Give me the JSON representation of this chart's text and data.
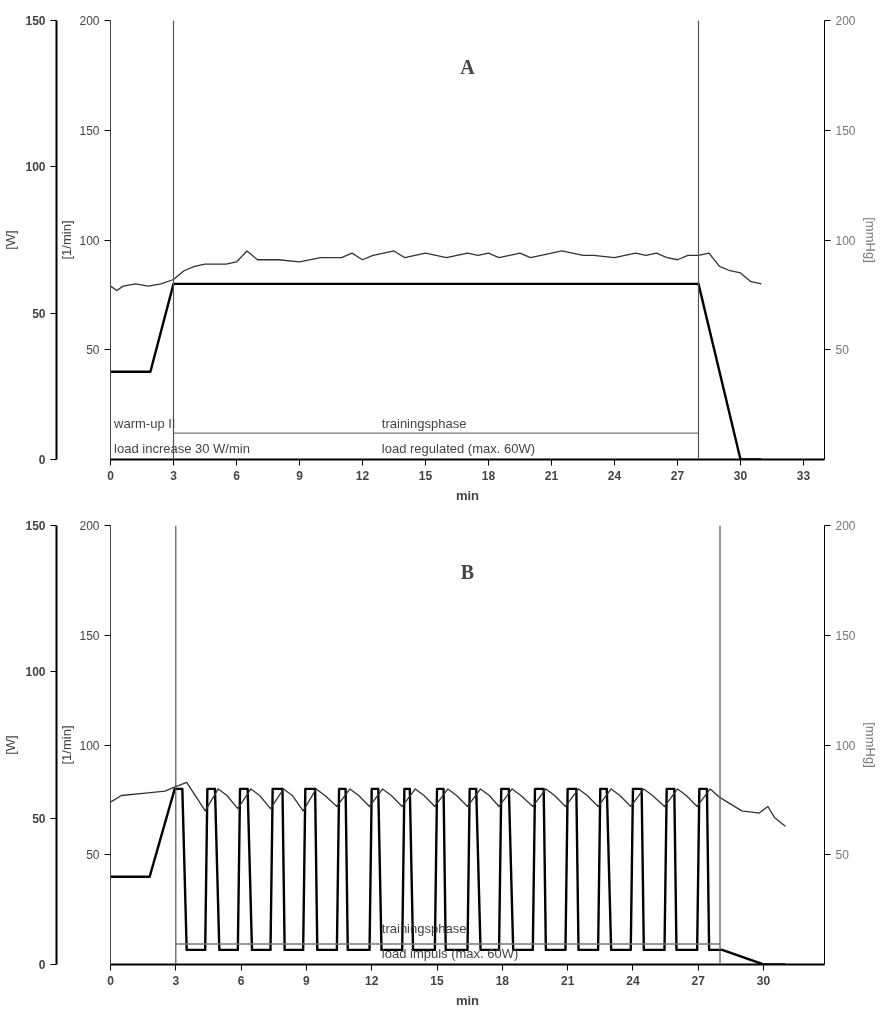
{
  "chart_data": [
    {
      "type": "line",
      "title": "A",
      "xlabel": "min",
      "ylabel": "[W]",
      "y2label": "[mmHg]",
      "y3label": "[1/min]",
      "xlim": [
        0,
        34
      ],
      "xticks": [
        0,
        3,
        6,
        9,
        12,
        15,
        18,
        21,
        24,
        27,
        30,
        33
      ],
      "ylim": [
        0,
        150
      ],
      "yticks": [
        0,
        50,
        100,
        150
      ],
      "y2lim": [
        0,
        200
      ],
      "y2ticks": [
        50,
        100,
        150,
        200
      ],
      "y3lim": [
        0,
        200
      ],
      "y3ticks": [
        50,
        100,
        150,
        200
      ],
      "series": [
        {
          "color": "#000000",
          "x": [
            0,
            1.9,
            3,
            28,
            30,
            31
          ],
          "values": [
            30,
            30,
            60,
            60,
            0,
            0
          ]
        },
        {
          "color": "#333333",
          "axis": "y3",
          "x": [
            0,
            0.3,
            0.6,
            1.2,
            1.8,
            2.4,
            3,
            3.5,
            4,
            4.5,
            5,
            5.5,
            6,
            6.5,
            7,
            8,
            9,
            10,
            11,
            11.5,
            12,
            12.5,
            13.5,
            14,
            15,
            15.5,
            16,
            17,
            17.5,
            18,
            18.5,
            19,
            19.5,
            20,
            20.5,
            21,
            21.5,
            22,
            22.5,
            23,
            24,
            24.5,
            25,
            25.5,
            26,
            26.5,
            27,
            27.5,
            28,
            28.5,
            29,
            29.5,
            30,
            30.5,
            31
          ],
          "values": [
            79,
            77,
            79,
            80,
            79,
            80,
            82,
            86,
            88,
            89,
            89,
            89,
            90,
            95,
            91,
            91,
            90,
            92,
            92,
            94,
            91,
            93,
            95,
            92,
            94,
            93,
            92,
            94,
            93,
            94,
            92,
            93,
            94,
            92,
            93,
            94,
            95,
            94,
            93,
            93,
            92,
            93,
            94,
            93,
            94,
            92,
            91,
            93,
            93,
            94,
            88,
            86,
            85,
            81,
            80
          ]
        },
        {
          "color": "#777777",
          "x": [
            3,
            28
          ],
          "values": [
            9,
            9
          ]
        }
      ],
      "ref_lines": [
        {
          "axis": "x",
          "value": 3,
          "color": "#555555"
        },
        {
          "axis": "x",
          "value": 28,
          "color": "#555555"
        }
      ],
      "annotations": [
        "warm-up II",
        "load increase 30 W/min",
        "trainingsphase",
        "load regulated (max. 60W)"
      ]
    },
    {
      "type": "line",
      "title": "B",
      "xlabel": "min",
      "ylabel": "[W]",
      "y2label": "[mmHg]",
      "y3label": "[1/min]",
      "xlim": [
        0,
        32.8
      ],
      "xticks": [
        0,
        3,
        6,
        9,
        12,
        15,
        18,
        21,
        24,
        27,
        30
      ],
      "ylim": [
        0,
        150
      ],
      "yticks": [
        0,
        50,
        100,
        150
      ],
      "y2lim": [
        0,
        200
      ],
      "y2ticks": [
        50,
        100,
        150,
        200
      ],
      "y3lim": [
        0,
        200
      ],
      "y3ticks": [
        50,
        100,
        150,
        200
      ],
      "series": [
        {
          "color": "#000000",
          "x": [
            0,
            1.8,
            2.95,
            3.3,
            3.5,
            4.35,
            4.45,
            4.8,
            5.0,
            5.85,
            5.95,
            6.3,
            6.5,
            7.35,
            7.45,
            7.9,
            8.0,
            8.85,
            8.95,
            9.4,
            9.5,
            10.4,
            10.5,
            10.8,
            10.9,
            11.9,
            12.0,
            12.3,
            12.45,
            13.4,
            13.5,
            13.75,
            13.9,
            14.9,
            15.0,
            15.3,
            15.4,
            16.4,
            16.5,
            16.8,
            17.0,
            17.85,
            17.95,
            18.3,
            18.5,
            19.4,
            19.5,
            19.9,
            20.0,
            20.9,
            21.0,
            21.4,
            21.5,
            22.4,
            22.5,
            22.8,
            23.0,
            23.9,
            24.0,
            24.4,
            24.5,
            25.45,
            25.55,
            25.9,
            26.0,
            26.95,
            27.05,
            27.4,
            27.5,
            28.1,
            30,
            31
          ],
          "values": [
            30,
            30,
            60,
            60,
            5,
            5,
            60,
            60,
            5,
            5,
            60,
            60,
            5,
            5,
            60,
            60,
            5,
            5,
            60,
            60,
            5,
            5,
            60,
            60,
            5,
            5,
            60,
            60,
            5,
            5,
            60,
            60,
            5,
            5,
            60,
            60,
            5,
            5,
            60,
            60,
            5,
            5,
            60,
            60,
            5,
            5,
            60,
            60,
            5,
            5,
            60,
            60,
            5,
            5,
            60,
            60,
            5,
            5,
            60,
            60,
            5,
            5,
            60,
            60,
            5,
            5,
            60,
            60,
            5,
            5,
            0,
            0
          ]
        },
        {
          "color": "#333333",
          "axis": "y3",
          "x": [
            0,
            0.5,
            1.5,
            2.5,
            3,
            3.5,
            4.35,
            4.95,
            5.35,
            5.85,
            6.45,
            6.85,
            7.35,
            7.95,
            8.35,
            8.85,
            9.45,
            9.85,
            10.4,
            11.0,
            11.4,
            11.9,
            12.5,
            12.9,
            13.4,
            14.0,
            14.4,
            14.9,
            15.5,
            15.9,
            16.4,
            17.0,
            17.4,
            17.85,
            18.45,
            18.85,
            19.4,
            20.0,
            20.4,
            20.9,
            21.5,
            21.9,
            22.4,
            23.0,
            23.4,
            23.9,
            24.5,
            24.9,
            25.45,
            26.05,
            26.45,
            26.95,
            27.55,
            28,
            29,
            29.8,
            30.2,
            30.5,
            31
          ],
          "values": [
            74,
            77,
            78,
            79,
            81,
            83,
            70,
            80,
            77,
            71,
            80,
            77,
            71,
            80,
            77,
            70,
            80,
            77,
            72,
            80,
            77,
            72,
            80,
            77,
            72,
            80,
            77,
            72,
            80,
            77,
            72,
            80,
            77,
            72,
            80,
            77,
            72,
            80,
            77,
            72,
            80,
            77,
            72,
            80,
            77,
            72,
            80,
            77,
            72,
            80,
            77,
            72,
            80,
            76,
            70,
            69,
            72,
            67,
            63
          ]
        },
        {
          "color": "#777777",
          "x": [
            3,
            28
          ],
          "values": [
            7,
            7
          ]
        }
      ],
      "ref_lines": [
        {
          "axis": "x",
          "value": 3,
          "color": "#555555"
        },
        {
          "axis": "x",
          "value": 28,
          "color": "#555555"
        }
      ],
      "annotations": [
        "trainingsphase",
        "load impuls (max. 60W)"
      ]
    }
  ]
}
